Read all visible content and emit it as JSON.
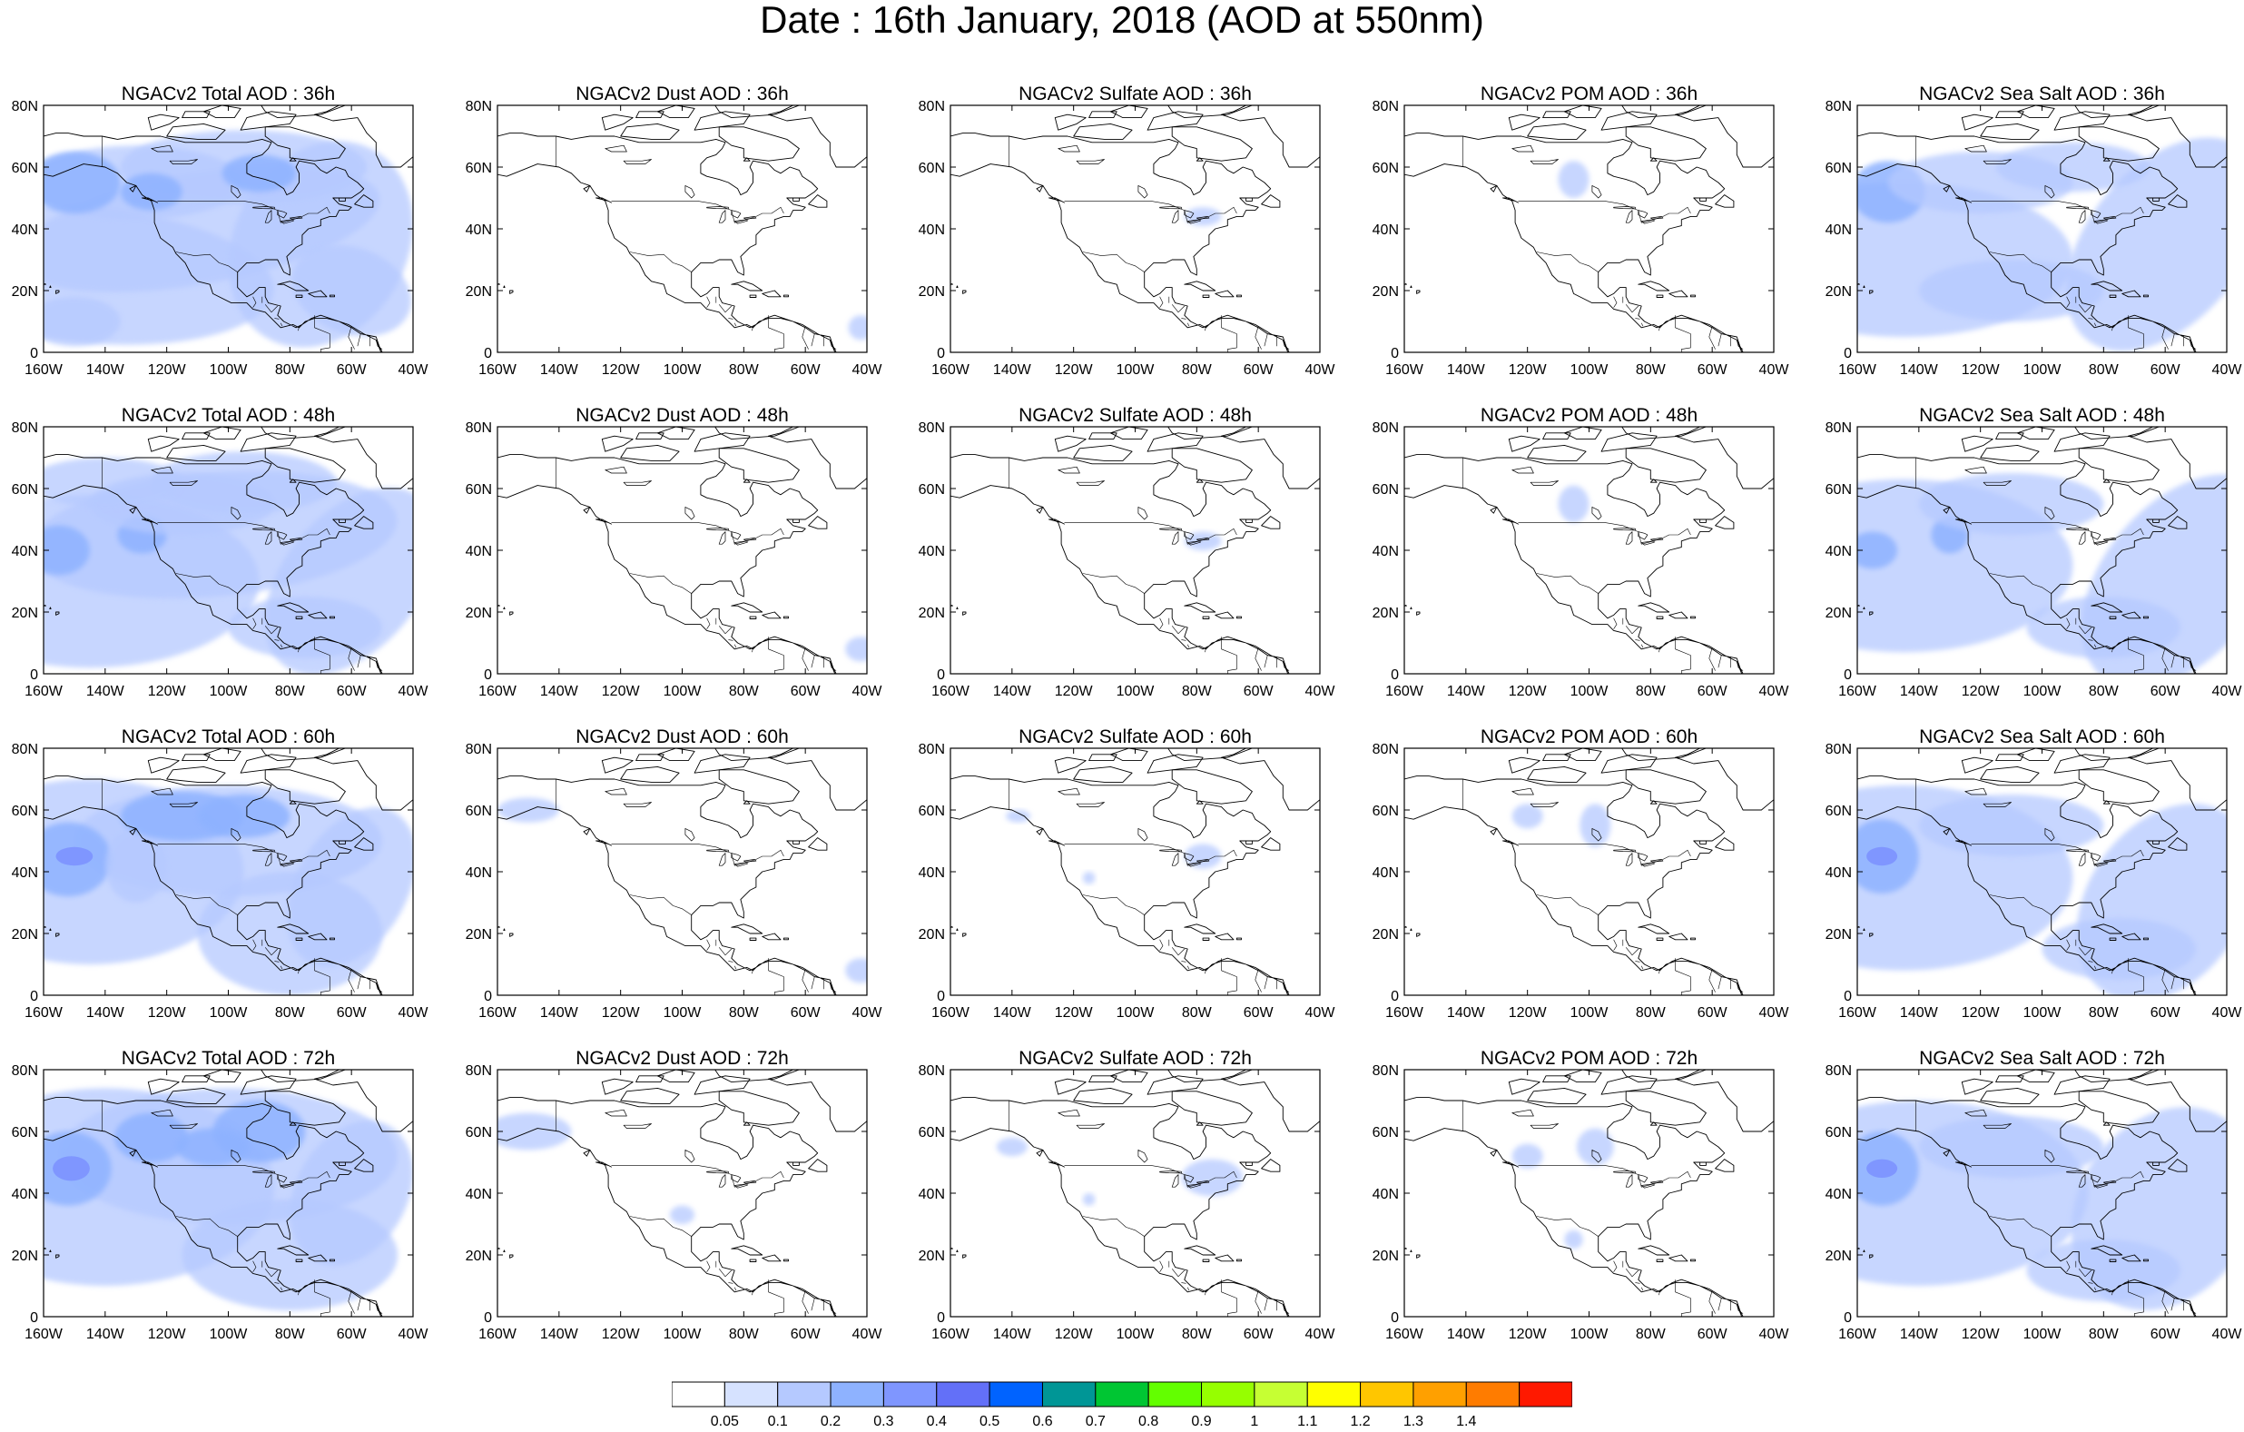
{
  "title": "Date : 16th January, 2018 (AOD at 550nm)",
  "forecast_hours": [
    "36h",
    "48h",
    "60h",
    "72h"
  ],
  "species": [
    {
      "key": "total",
      "label": "NGACv2 Total AOD"
    },
    {
      "key": "dust",
      "label": "NGACv2 Dust AOD"
    },
    {
      "key": "sulfate",
      "label": "NGACv2 Sulfate AOD"
    },
    {
      "key": "pom",
      "label": "NGACv2 POM AOD"
    },
    {
      "key": "seasalt",
      "label": "NGACv2 Sea Salt AOD"
    }
  ],
  "panels": [
    {
      "title": "NGACv2 Total AOD : 36h",
      "species": "total",
      "hour": 36
    },
    {
      "title": "NGACv2 Dust AOD : 36h",
      "species": "dust",
      "hour": 36
    },
    {
      "title": "NGACv2 Sulfate AOD : 36h",
      "species": "sulfate",
      "hour": 36
    },
    {
      "title": "NGACv2 POM AOD : 36h",
      "species": "pom",
      "hour": 36
    },
    {
      "title": "NGACv2 Sea Salt AOD : 36h",
      "species": "seasalt",
      "hour": 36
    },
    {
      "title": "NGACv2 Total AOD : 48h",
      "species": "total",
      "hour": 48
    },
    {
      "title": "NGACv2 Dust AOD : 48h",
      "species": "dust",
      "hour": 48
    },
    {
      "title": "NGACv2 Sulfate AOD : 48h",
      "species": "sulfate",
      "hour": 48
    },
    {
      "title": "NGACv2 POM AOD : 48h",
      "species": "pom",
      "hour": 48
    },
    {
      "title": "NGACv2 Sea Salt AOD : 48h",
      "species": "seasalt",
      "hour": 48
    },
    {
      "title": "NGACv2 Total AOD : 60h",
      "species": "total",
      "hour": 60
    },
    {
      "title": "NGACv2 Dust AOD : 60h",
      "species": "dust",
      "hour": 60
    },
    {
      "title": "NGACv2 Sulfate AOD : 60h",
      "species": "sulfate",
      "hour": 60
    },
    {
      "title": "NGACv2 POM AOD : 60h",
      "species": "pom",
      "hour": 60
    },
    {
      "title": "NGACv2 Sea Salt AOD : 60h",
      "species": "seasalt",
      "hour": 60
    },
    {
      "title": "NGACv2 Total AOD : 72h",
      "species": "total",
      "hour": 72
    },
    {
      "title": "NGACv2 Dust AOD : 72h",
      "species": "dust",
      "hour": 72
    },
    {
      "title": "NGACv2 Sulfate AOD : 72h",
      "species": "sulfate",
      "hour": 72
    },
    {
      "title": "NGACv2 POM AOD : 72h",
      "species": "pom",
      "hour": 72
    },
    {
      "title": "NGACv2 Sea Salt  AOD : 72h",
      "species": "seasalt",
      "hour": 72
    }
  ],
  "map": {
    "lon_range": [
      -160,
      -40
    ],
    "lat_range": [
      0,
      80
    ],
    "x_ticks": [
      "160W",
      "140W",
      "120W",
      "100W",
      "80W",
      "60W",
      "40W"
    ],
    "x_tick_values": [
      -160,
      -140,
      -120,
      -100,
      -80,
      -60,
      -40
    ],
    "y_ticks": [
      "0",
      "20N",
      "40N",
      "60N",
      "80N"
    ],
    "y_tick_values": [
      0,
      20,
      40,
      60,
      80
    ]
  },
  "colorbar": {
    "labels": [
      "0.05",
      "0.1",
      "0.2",
      "0.3",
      "0.4",
      "0.5",
      "0.6",
      "0.7",
      "0.8",
      "0.9",
      "1",
      "1.1",
      "1.2",
      "1.3",
      "1.4"
    ],
    "colors": [
      "#ffffff",
      "#d6e2ff",
      "#b5c9ff",
      "#8eb2ff",
      "#7f96ff",
      "#6370f8",
      "#0063ff",
      "#009696",
      "#00c633",
      "#63ff00",
      "#96ff00",
      "#c6ff33",
      "#ffff00",
      "#ffc600",
      "#ffa000",
      "#ff7c00",
      "#ff1900"
    ]
  },
  "plume_colors": {
    "light": "#d6e2ff",
    "mid": "#b5c9ff",
    "strong": "#8eb2ff",
    "peak": "#7f96ff",
    "core": "#63ff00"
  }
}
